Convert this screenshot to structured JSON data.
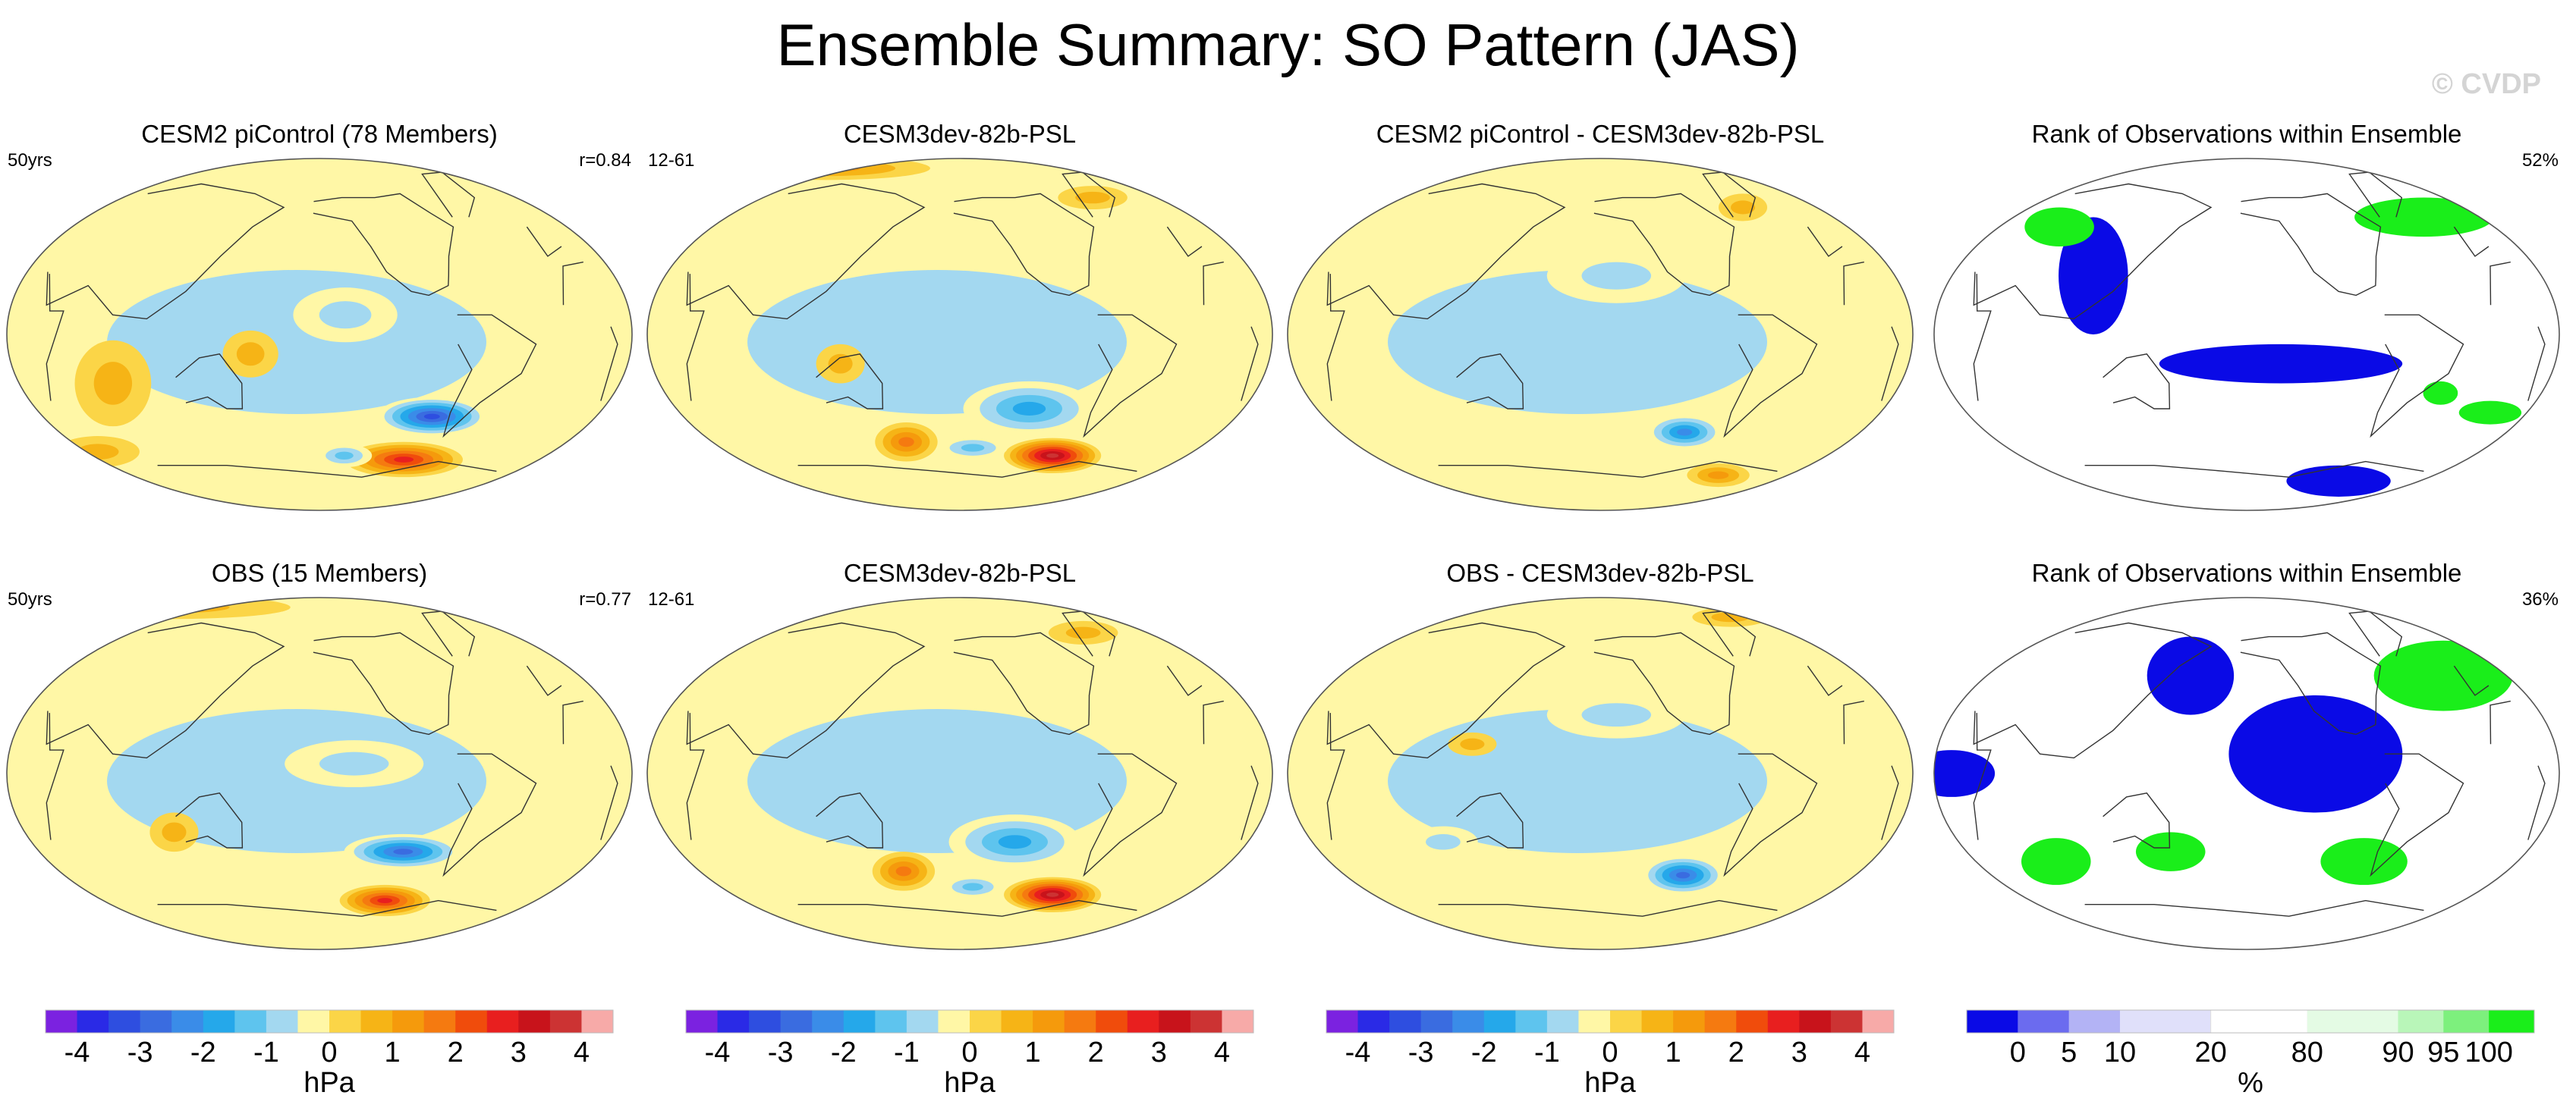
{
  "figure": {
    "title": "Ensemble Summary: SO Pattern (JAS)",
    "watermark": "© CVDP"
  },
  "chart_data": [
    {
      "type": "heatmap",
      "map_kind": "psl",
      "title": "CESM2 piControl (78 Members)",
      "left_label": "50yrs",
      "right_label": "r=0.84",
      "features": [
        {
          "lon": -85,
          "lat": -42,
          "value": -3.5,
          "width_deg": 32,
          "height_deg": 10
        },
        {
          "lon": -90,
          "lat": -64,
          "value": 2.8,
          "width_deg": 34,
          "height_deg": 9
        },
        {
          "lon": -140,
          "lat": -62,
          "value": -1.5,
          "width_deg": 16,
          "height_deg": 6
        },
        {
          "lon": -145,
          "lat": 10,
          "value": -0.8,
          "width_deg": 30,
          "height_deg": 14
        },
        {
          "lon": 75,
          "lat": -25,
          "value": 1.2,
          "width_deg": 22,
          "height_deg": 22
        },
        {
          "lon": 160,
          "lat": -10,
          "value": 1.0,
          "width_deg": 16,
          "height_deg": 12
        },
        {
          "lon": 25,
          "lat": -60,
          "value": 0.8,
          "width_deg": 24,
          "height_deg": 8
        }
      ]
    },
    {
      "type": "heatmap",
      "map_kind": "psl",
      "title": "CESM3dev-82b-PSL",
      "left_label": "12-61",
      "right_label": "",
      "features": [
        {
          "lon": -115,
          "lat": -38,
          "value": -2.0,
          "width_deg": 38,
          "height_deg": 14
        },
        {
          "lon": -85,
          "lat": -62,
          "value": 4.0,
          "width_deg": 28,
          "height_deg": 9
        },
        {
          "lon": -150,
          "lat": -58,
          "value": -1.6,
          "width_deg": 20,
          "height_deg": 6
        },
        {
          "lon": 160,
          "lat": -55,
          "value": 1.8,
          "width_deg": 18,
          "height_deg": 10
        },
        {
          "lon": 130,
          "lat": -15,
          "value": 0.8,
          "width_deg": 14,
          "height_deg": 10
        },
        {
          "lon": 40,
          "lat": 85,
          "value": 1.5,
          "width_deg": 60,
          "height_deg": 6
        },
        {
          "lon": -40,
          "lat": 70,
          "value": 1.2,
          "width_deg": 20,
          "height_deg": 6
        }
      ]
    },
    {
      "type": "heatmap",
      "map_kind": "psl",
      "title": "CESM2 piControl - CESM3dev-82b-PSL",
      "left_label": "",
      "right_label": "",
      "features": [
        {
          "lon": -100,
          "lat": -50,
          "value": -2.4,
          "width_deg": 22,
          "height_deg": 9
        },
        {
          "lon": -50,
          "lat": -72,
          "value": 1.6,
          "width_deg": 18,
          "height_deg": 6
        },
        {
          "lon": -150,
          "lat": 30,
          "value": -0.8,
          "width_deg": 40,
          "height_deg": 14
        },
        {
          "lon": -40,
          "lat": 65,
          "value": 1.0,
          "width_deg": 14,
          "height_deg": 7
        }
      ]
    },
    {
      "type": "heatmap",
      "map_kind": "rank",
      "title": "Rank of Observations within Ensemble",
      "left_label": "",
      "right_label": "52%",
      "features": [
        {
          "lon": -140,
          "lat": -15,
          "value": 0,
          "width_deg": 70,
          "height_deg": 10
        },
        {
          "lon": 105,
          "lat": 30,
          "value": 0,
          "width_deg": 20,
          "height_deg": 30
        },
        {
          "lon": -70,
          "lat": -75,
          "value": 0,
          "width_deg": 30,
          "height_deg": 8
        },
        {
          "lon": -20,
          "lat": 60,
          "value": 100,
          "width_deg": 40,
          "height_deg": 10
        },
        {
          "lon": 60,
          "lat": 55,
          "value": 100,
          "width_deg": 20,
          "height_deg": 10
        },
        {
          "lon": 0,
          "lat": -40,
          "value": 100,
          "width_deg": 18,
          "height_deg": 6
        },
        {
          "lon": -40,
          "lat": -30,
          "value": 100,
          "width_deg": 10,
          "height_deg": 6
        }
      ]
    },
    {
      "type": "heatmap",
      "map_kind": "psl",
      "title": "OBS (15 Members)",
      "left_label": "50yrs",
      "right_label": "r=0.77",
      "features": [
        {
          "lon": -105,
          "lat": -40,
          "value": -3.2,
          "width_deg": 34,
          "height_deg": 9
        },
        {
          "lon": -105,
          "lat": -65,
          "value": 2.8,
          "width_deg": 26,
          "height_deg": 8
        },
        {
          "lon": 110,
          "lat": -30,
          "value": 1.0,
          "width_deg": 14,
          "height_deg": 10
        },
        {
          "lon": -140,
          "lat": 5,
          "value": -0.8,
          "width_deg": 40,
          "height_deg": 12
        },
        {
          "lon": 20,
          "lat": 85,
          "value": 1.0,
          "width_deg": 70,
          "height_deg": 6
        }
      ]
    },
    {
      "type": "heatmap",
      "map_kind": "psl",
      "title": "CESM3dev-82b-PSL",
      "left_label": "12-61",
      "right_label": "",
      "features": [
        {
          "lon": -125,
          "lat": -35,
          "value": -2.0,
          "width_deg": 38,
          "height_deg": 14
        },
        {
          "lon": -85,
          "lat": -62,
          "value": 4.0,
          "width_deg": 28,
          "height_deg": 9
        },
        {
          "lon": -150,
          "lat": -58,
          "value": -1.6,
          "width_deg": 18,
          "height_deg": 6
        },
        {
          "lon": 160,
          "lat": -50,
          "value": 2.0,
          "width_deg": 18,
          "height_deg": 10
        },
        {
          "lon": -45,
          "lat": 72,
          "value": 1.0,
          "width_deg": 20,
          "height_deg": 6
        }
      ]
    },
    {
      "type": "heatmap",
      "map_kind": "psl",
      "title": "OBS - CESM3dev-82b-PSL",
      "left_label": "",
      "right_label": "",
      "features": [
        {
          "lon": -100,
          "lat": -52,
          "value": -3.0,
          "width_deg": 24,
          "height_deg": 10
        },
        {
          "lon": -20,
          "lat": 80,
          "value": 1.0,
          "width_deg": 22,
          "height_deg": 5
        },
        {
          "lon": 125,
          "lat": 15,
          "value": 1.2,
          "width_deg": 14,
          "height_deg": 6
        },
        {
          "lon": -150,
          "lat": 30,
          "value": -0.8,
          "width_deg": 40,
          "height_deg": 12
        },
        {
          "lon": 100,
          "lat": -35,
          "value": -0.8,
          "width_deg": 20,
          "height_deg": 8
        }
      ]
    },
    {
      "type": "heatmap",
      "map_kind": "rank",
      "title": "Rank of Observations within Ensemble",
      "left_label": "",
      "right_label": "36%",
      "features": [
        {
          "lon": -120,
          "lat": 10,
          "value": 0,
          "width_deg": 50,
          "height_deg": 30
        },
        {
          "lon": 160,
          "lat": 50,
          "value": 0,
          "width_deg": 25,
          "height_deg": 20
        },
        {
          "lon": 30,
          "lat": 0,
          "value": 0,
          "width_deg": 25,
          "height_deg": 12
        },
        {
          "lon": -20,
          "lat": 50,
          "value": 100,
          "width_deg": 40,
          "height_deg": 18
        },
        {
          "lon": -80,
          "lat": -45,
          "value": 100,
          "width_deg": 25,
          "height_deg": 12
        },
        {
          "lon": 70,
          "lat": -45,
          "value": 100,
          "width_deg": 20,
          "height_deg": 12
        },
        {
          "lon": 150,
          "lat": -40,
          "value": 100,
          "width_deg": 20,
          "height_deg": 10
        }
      ]
    }
  ],
  "colorbars": [
    {
      "type": "psl",
      "unit": "hPa",
      "ticks": [
        "-4",
        "-3",
        "-2",
        "-1",
        "0",
        "1",
        "2",
        "3",
        "4"
      ],
      "colors": [
        "#7b22e0",
        "#2a2ae6",
        "#2e4ee0",
        "#3a6ce0",
        "#3a8ce8",
        "#25a8ea",
        "#5ec4ee",
        "#a3d8f0",
        "#fff7a6",
        "#fbd547",
        "#f6b416",
        "#f59a0c",
        "#f57a10",
        "#f04c0c",
        "#e81f1f",
        "#c8131b",
        "#cc3333",
        "#f7aaa8"
      ]
    },
    {
      "type": "psl",
      "unit": "hPa",
      "ticks": [
        "-4",
        "-3",
        "-2",
        "-1",
        "0",
        "1",
        "2",
        "3",
        "4"
      ],
      "colors": [
        "#7b22e0",
        "#2a2ae6",
        "#2e4ee0",
        "#3a6ce0",
        "#3a8ce8",
        "#25a8ea",
        "#5ec4ee",
        "#a3d8f0",
        "#fff7a6",
        "#fbd547",
        "#f6b416",
        "#f59a0c",
        "#f57a10",
        "#f04c0c",
        "#e81f1f",
        "#c8131b",
        "#cc3333",
        "#f7aaa8"
      ]
    },
    {
      "type": "psl",
      "unit": "hPa",
      "ticks": [
        "-4",
        "-3",
        "-2",
        "-1",
        "0",
        "1",
        "2",
        "3",
        "4"
      ],
      "colors": [
        "#7b22e0",
        "#2a2ae6",
        "#2e4ee0",
        "#3a6ce0",
        "#3a8ce8",
        "#25a8ea",
        "#5ec4ee",
        "#a3d8f0",
        "#fff7a6",
        "#fbd547",
        "#f6b416",
        "#f59a0c",
        "#f57a10",
        "#f04c0c",
        "#e81f1f",
        "#c8131b",
        "#cc3333",
        "#f7aaa8"
      ]
    },
    {
      "type": "rank",
      "unit": "%",
      "ticks": [
        "0",
        "5",
        "10",
        "20",
        "80",
        "90",
        "95",
        "100"
      ],
      "colors": [
        "#0a0ae6",
        "#6b6bef",
        "#b3b3f5",
        "#e0e0fa",
        "#ffffff",
        "#e4fbe4",
        "#b9f6b9",
        "#7df07d",
        "#1aee1a"
      ]
    }
  ]
}
